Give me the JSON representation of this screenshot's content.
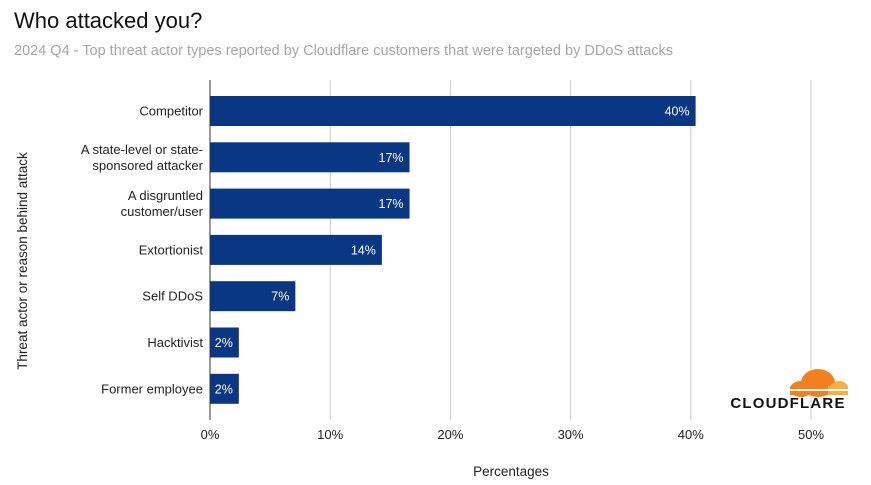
{
  "header": {
    "title": "Who attacked you?",
    "subtitle": "2024 Q4 - Top threat actor types reported by Cloudflare customers that were targeted by DDoS attacks"
  },
  "logo": {
    "text": "CLOUDFLARE",
    "icon": "cloud-icon",
    "color": "#f38020"
  },
  "chart_data": {
    "type": "bar",
    "orientation": "horizontal",
    "categories": [
      [
        "Competitor"
      ],
      [
        "A state-level or state-",
        "sponsored attacker"
      ],
      [
        "A disgruntled",
        "customer/user"
      ],
      [
        "Extortionist"
      ],
      [
        "Self DDoS"
      ],
      [
        "Hacktivist"
      ],
      [
        "Former employee"
      ]
    ],
    "values": [
      40.4,
      16.6,
      16.6,
      14.3,
      7.1,
      2.4,
      2.4
    ],
    "value_labels": [
      "40%",
      "17%",
      "17%",
      "14%",
      "7%",
      "2%",
      "2%"
    ],
    "xlabel": "Percentages",
    "ylabel": "Threat actor or reason behind attack",
    "xlim": [
      0,
      50
    ],
    "xticks": [
      0,
      10,
      20,
      30,
      40,
      50
    ],
    "xtick_labels": [
      "0%",
      "10%",
      "20%",
      "30%",
      "40%",
      "50%"
    ],
    "bar_color": "#0a3783",
    "grid": true
  }
}
